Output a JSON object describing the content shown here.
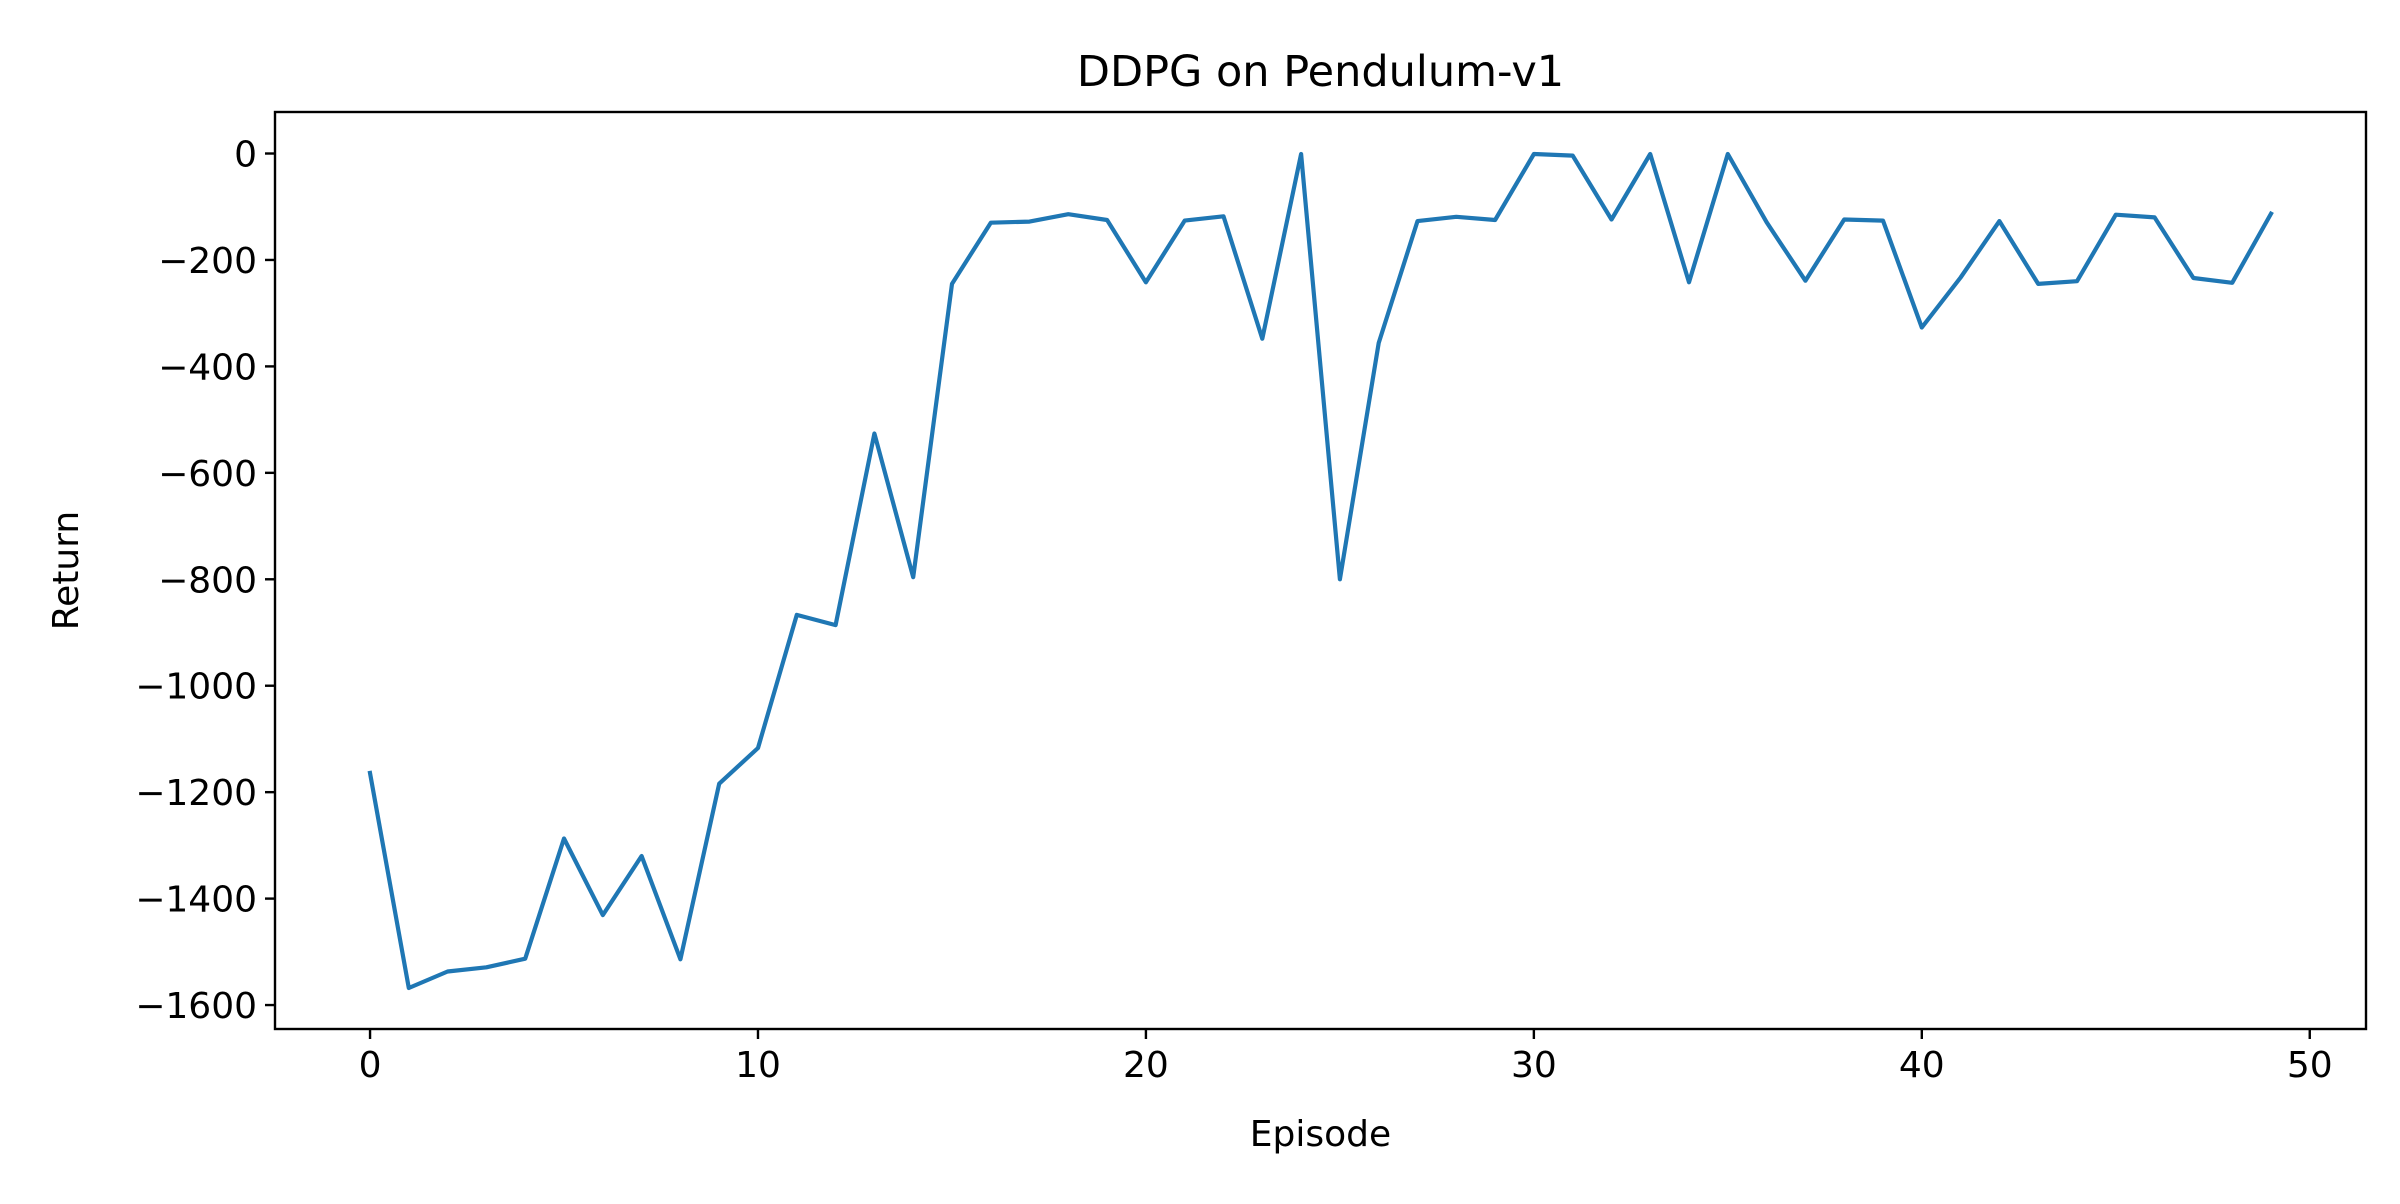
{
  "chart_data": {
    "type": "line",
    "title": "DDPG on Pendulum-v1",
    "xlabel": "Episode",
    "ylabel": "Return",
    "xlim": [
      -2.45,
      51.45
    ],
    "ylim": [
      -1645,
      78
    ],
    "xticks": [
      0,
      10,
      20,
      30,
      40,
      50
    ],
    "yticks": [
      0,
      -200,
      -400,
      -600,
      -800,
      -1000,
      -1200,
      -1400,
      -1600
    ],
    "xtick_labels": [
      "0",
      "10",
      "20",
      "30",
      "40",
      "50"
    ],
    "ytick_labels": [
      "0",
      "−200",
      "−400",
      "−600",
      "−800",
      "−1000",
      "−1200",
      "−1400",
      "−1600"
    ],
    "grid": false,
    "series": [
      {
        "color": "#1f77b4",
        "x": [
          0,
          1,
          2,
          3,
          4,
          5,
          6,
          7,
          8,
          9,
          10,
          11,
          12,
          13,
          14,
          15,
          16,
          17,
          18,
          19,
          20,
          21,
          22,
          23,
          24,
          25,
          26,
          27,
          28,
          29,
          30,
          31,
          32,
          33,
          34,
          35,
          36,
          37,
          38,
          39,
          40,
          41,
          42,
          43,
          44,
          45,
          46,
          47,
          48,
          49
        ],
        "values": [
          -1164,
          -1568,
          -1537,
          -1529,
          -1513,
          -1287,
          -1431,
          -1320,
          -1514,
          -1184,
          -1117,
          -867,
          -886,
          -526,
          -796,
          -245,
          -130,
          -128,
          -114,
          -125,
          -242,
          -126,
          -118,
          -348,
          -1,
          -800,
          -356,
          -127,
          -119,
          -125,
          -1,
          -4,
          -124,
          -1,
          -242,
          -1,
          -129,
          -239,
          -124,
          -126,
          -327,
          -233,
          -127,
          -245,
          -240,
          -115,
          -120,
          -234,
          -243,
          -113
        ]
      }
    ]
  }
}
